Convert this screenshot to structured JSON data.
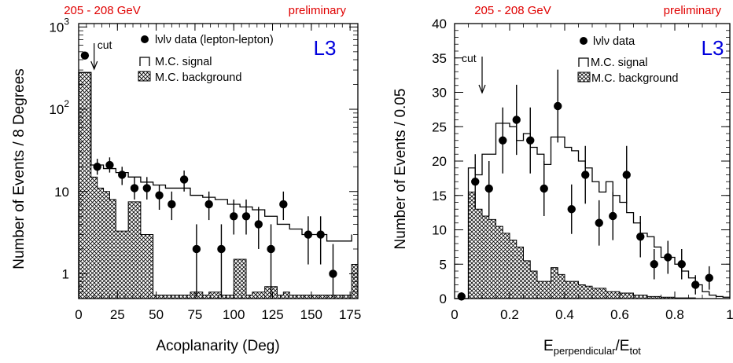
{
  "chart_data": [
    {
      "type": "histogram",
      "header_left": "205 - 208 GeV",
      "header_right": "preliminary",
      "experiment": "L3",
      "xlabel": "Acoplanarity (Deg)",
      "ylabel": "Number of Events / 8 Degrees",
      "xlim": [
        0,
        180
      ],
      "ylim": [
        0.5,
        1100
      ],
      "yscale": "log",
      "x_ticks": [
        "0",
        "25",
        "50",
        "75",
        "100",
        "125",
        "150",
        "175"
      ],
      "x_tick_values": [
        0,
        25,
        50,
        75,
        100,
        125,
        150,
        175
      ],
      "y_ticks": [
        {
          "value": 1,
          "base": "1",
          "exp": ""
        },
        {
          "value": 10,
          "base": "10",
          "exp": ""
        },
        {
          "value": 100,
          "base": "10",
          "exp": "2"
        },
        {
          "value": 1000,
          "base": "10",
          "exp": "3"
        }
      ],
      "legend": [
        "lνlν data (lepton-lepton)",
        "M.C. signal",
        "M.C. background"
      ],
      "cut": {
        "x": 10,
        "label": "cut"
      },
      "signal": {
        "edges": [
          0,
          8,
          16,
          24,
          32,
          40,
          48,
          56,
          64,
          72,
          80,
          88,
          96,
          104,
          112,
          120,
          128,
          136,
          144,
          152,
          160,
          168,
          176
        ],
        "values": [
          280,
          21,
          19,
          17,
          15,
          13,
          12,
          11,
          11,
          9,
          8.5,
          8,
          7,
          6.5,
          6,
          5,
          4,
          3.5,
          3,
          3,
          2.5,
          2.5,
          3
        ]
      },
      "background": {
        "edges": [
          0,
          4,
          8,
          12,
          16,
          20,
          24,
          28,
          32,
          36,
          40,
          44,
          48,
          52,
          56,
          60,
          64,
          68,
          72,
          76,
          80,
          84,
          88,
          92,
          96,
          100,
          104,
          108,
          112,
          116,
          120,
          124,
          128,
          132,
          136,
          140,
          144,
          148,
          152,
          156,
          160,
          164,
          168,
          172,
          176,
          180
        ],
        "values": [
          280,
          280,
          15,
          11,
          10,
          8,
          3.3,
          3.3,
          7.5,
          7.5,
          3,
          3,
          0.55,
          0.55,
          0.55,
          0.55,
          0.55,
          0.55,
          0.6,
          0.6,
          0.55,
          0.6,
          0.6,
          0.55,
          0.55,
          1.5,
          1.5,
          0.55,
          0.6,
          0.6,
          0.7,
          0.7,
          0.55,
          0.6,
          0.55,
          0.55,
          0.55,
          0.55,
          0.55,
          0.55,
          0.55,
          0.55,
          0.55,
          0.55,
          1.3,
          1.3
        ]
      },
      "data": [
        {
          "x": 4,
          "y": 450,
          "lo": 430,
          "hi": 470
        },
        {
          "x": 12,
          "y": 20,
          "lo": 16,
          "hi": 25
        },
        {
          "x": 20,
          "y": 21,
          "lo": 17,
          "hi": 26
        },
        {
          "x": 28,
          "y": 16,
          "lo": 12,
          "hi": 20
        },
        {
          "x": 36,
          "y": 11,
          "lo": 8,
          "hi": 15
        },
        {
          "x": 44,
          "y": 11,
          "lo": 8,
          "hi": 15
        },
        {
          "x": 52,
          "y": 9,
          "lo": 6,
          "hi": 12
        },
        {
          "x": 60,
          "y": 7,
          "lo": 4.5,
          "hi": 10
        },
        {
          "x": 68,
          "y": 14,
          "lo": 10,
          "hi": 18
        },
        {
          "x": 76,
          "y": 2,
          "lo": 0.52,
          "hi": 4
        },
        {
          "x": 84,
          "y": 7,
          "lo": 4.5,
          "hi": 10
        },
        {
          "x": 92,
          "y": 2,
          "lo": 0.52,
          "hi": 4
        },
        {
          "x": 100,
          "y": 5,
          "lo": 3,
          "hi": 8
        },
        {
          "x": 108,
          "y": 5,
          "lo": 3,
          "hi": 8
        },
        {
          "x": 116,
          "y": 4,
          "lo": 2,
          "hi": 6.5
        },
        {
          "x": 124,
          "y": 2,
          "lo": 0.52,
          "hi": 4
        },
        {
          "x": 132,
          "y": 7,
          "lo": 4.5,
          "hi": 10
        },
        {
          "x": 148,
          "y": 3,
          "lo": 1.3,
          "hi": 5
        },
        {
          "x": 156,
          "y": 3,
          "lo": 1.3,
          "hi": 5
        },
        {
          "x": 164,
          "y": 1,
          "lo": 0.52,
          "hi": 2.3
        }
      ]
    },
    {
      "type": "histogram",
      "header_left": "205 - 208 GeV",
      "header_right": "preliminary",
      "experiment": "L3",
      "xlabel_main": "E",
      "xlabel_sub1": "perpendicular",
      "xlabel_mid": "/E",
      "xlabel_sub2": "tot",
      "ylabel": "Number of Events / 0.05",
      "xlim": [
        0,
        1
      ],
      "ylim": [
        0,
        40
      ],
      "yscale": "linear",
      "x_ticks": [
        "0",
        "0.2",
        "0.4",
        "0.6",
        "0.8",
        "1"
      ],
      "x_tick_values": [
        0,
        0.2,
        0.4,
        0.6,
        0.8,
        1
      ],
      "y_ticks": [
        "0",
        "5",
        "10",
        "15",
        "20",
        "25",
        "30",
        "35",
        "40"
      ],
      "y_tick_values": [
        0,
        5,
        10,
        15,
        20,
        25,
        30,
        35,
        40
      ],
      "legend": [
        "lνlν data",
        "M.C. signal",
        "M.C. background"
      ],
      "cut": {
        "x": 0.1,
        "label": "cut"
      },
      "signal": {
        "edges": [
          0,
          0.05,
          0.075,
          0.1,
          0.125,
          0.15,
          0.175,
          0.2,
          0.225,
          0.25,
          0.275,
          0.3,
          0.325,
          0.35,
          0.375,
          0.4,
          0.425,
          0.45,
          0.475,
          0.5,
          0.525,
          0.55,
          0.575,
          0.6,
          0.625,
          0.65,
          0.675,
          0.7,
          0.725,
          0.75,
          0.775,
          0.8,
          0.825,
          0.85,
          0.875,
          0.9,
          0.925,
          0.95,
          0.975,
          1
        ],
        "values": [
          0,
          19,
          18,
          21,
          21,
          25.5,
          25.5,
          25,
          23,
          24,
          22,
          21,
          19.5,
          23.5,
          23.5,
          22,
          21.5,
          20,
          19,
          17,
          15.5,
          17,
          15,
          14,
          12.5,
          11,
          9.5,
          9,
          7.5,
          6,
          6,
          5,
          4,
          3,
          2,
          1,
          0.5,
          0.3,
          0.2
        ]
      },
      "background": {
        "edges": [
          0,
          0.05,
          0.075,
          0.1,
          0.125,
          0.15,
          0.175,
          0.2,
          0.225,
          0.25,
          0.275,
          0.3,
          0.325,
          0.35,
          0.375,
          0.4,
          0.425,
          0.45,
          0.475,
          0.5,
          0.525,
          0.55,
          0.575,
          0.6,
          0.625,
          0.65,
          0.675,
          0.7,
          0.725,
          0.75,
          0.775,
          0.8,
          0.825,
          0.85,
          0.875,
          0.9,
          0.925,
          0.95,
          0.975,
          1
        ],
        "values": [
          0,
          15.5,
          13,
          12,
          11.5,
          10.5,
          9.5,
          8.5,
          7.5,
          5.5,
          4,
          2.5,
          2.5,
          4.5,
          3.5,
          2.5,
          2.5,
          2,
          1.8,
          1.5,
          1.5,
          1,
          1,
          0.8,
          0.8,
          0.5,
          0.5,
          0.3,
          0.3,
          0.2,
          0.2,
          0.1,
          0.1,
          0.1,
          0,
          0,
          0,
          0,
          0
        ]
      },
      "data": [
        {
          "x": 0.025,
          "y": 0.3,
          "e": 0.6
        },
        {
          "x": 0.075,
          "y": 17,
          "e": 4
        },
        {
          "x": 0.125,
          "y": 16,
          "e": 4
        },
        {
          "x": 0.175,
          "y": 23,
          "e": 4.8
        },
        {
          "x": 0.225,
          "y": 26,
          "e": 5.1
        },
        {
          "x": 0.275,
          "y": 23,
          "e": 4.8
        },
        {
          "x": 0.325,
          "y": 16,
          "e": 4
        },
        {
          "x": 0.375,
          "y": 28,
          "e": 5.3
        },
        {
          "x": 0.425,
          "y": 13,
          "e": 3.6
        },
        {
          "x": 0.475,
          "y": 18,
          "e": 4.2
        },
        {
          "x": 0.525,
          "y": 11,
          "e": 3.3
        },
        {
          "x": 0.575,
          "y": 12,
          "e": 3.5
        },
        {
          "x": 0.625,
          "y": 18,
          "e": 4.2
        },
        {
          "x": 0.675,
          "y": 9,
          "e": 3
        },
        {
          "x": 0.725,
          "y": 5,
          "e": 2.2
        },
        {
          "x": 0.775,
          "y": 6,
          "e": 2.4
        },
        {
          "x": 0.825,
          "y": 5,
          "e": 2.2
        },
        {
          "x": 0.875,
          "y": 2,
          "e": 1.4
        },
        {
          "x": 0.925,
          "y": 3,
          "e": 1.7
        }
      ]
    }
  ]
}
